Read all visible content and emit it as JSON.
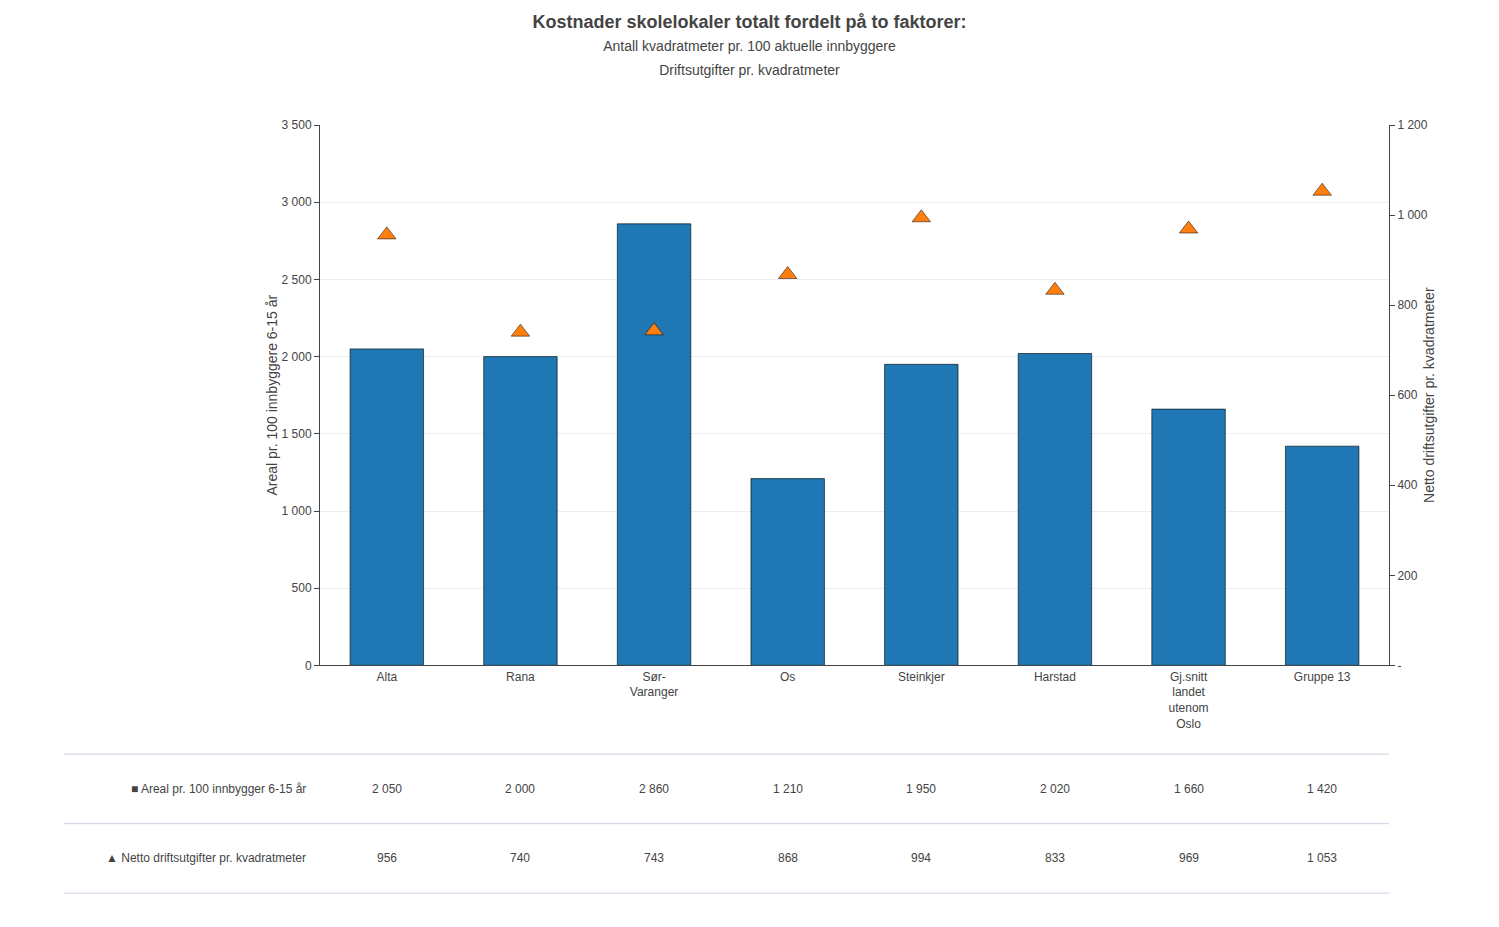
{
  "chart_data": {
    "type": "bar",
    "title": "Kostnader skolelokaler totalt fordelt på to faktorer:",
    "subtitle": [
      "Antall kvadratmeter pr. 100 aktuelle innbyggere",
      "Driftsutgifter pr. kvadratmeter"
    ],
    "categories": [
      "Alta",
      "Rana",
      "Sør-\nVaranger",
      "Os",
      "Steinkjer",
      "Harstad",
      "Gj.snitt\nlandet\nutenom\nOslo",
      "Gruppe 13"
    ],
    "ylabel": "Areal pr. 100 innbyggere 6-15 år",
    "y2label": "Netto driftsutgifter pr. kvadratmeter",
    "ylim": [
      0,
      3500
    ],
    "yticks": [
      0,
      500,
      {
        "value": 1000,
        "label": "1 000"
      },
      {
        "value": 1500,
        "label": "1 500"
      },
      {
        "value": 2000,
        "label": "2 000"
      },
      {
        "value": 2500,
        "label": "2 500"
      },
      {
        "value": 3000,
        "label": "3 000"
      },
      {
        "value": 3500,
        "label": "3 500"
      }
    ],
    "y2lim": [
      0,
      1200
    ],
    "y2ticks": [
      {
        "value": 0,
        "label": "-"
      },
      200,
      400,
      600,
      800,
      {
        "value": 1000,
        "label": "1 000"
      },
      {
        "value": 1200,
        "label": "1 200"
      }
    ],
    "grid": true,
    "data_labels": true,
    "series": [
      {
        "name": "■ Areal pr. 100 innbygger 6-15 år",
        "type": "bar",
        "values": [
          2050,
          2000,
          2860,
          1210,
          1950,
          2020,
          1660,
          1420
        ],
        "value_labels": [
          "2 050",
          "2 000",
          "2 860",
          "1 210",
          "1 950",
          "2 020",
          "1 660",
          "1 420"
        ]
      },
      {
        "name": "▲ Netto driftsutgifter pr. kvadratmeter",
        "type": "scatter",
        "marker": "triangle",
        "axis": "y2",
        "values": [
          956,
          740,
          743,
          868,
          994,
          833,
          969,
          1053
        ],
        "value_labels": [
          "956",
          "740",
          "743",
          "868",
          "994",
          "833",
          "969",
          "1 053"
        ]
      }
    ]
  }
}
